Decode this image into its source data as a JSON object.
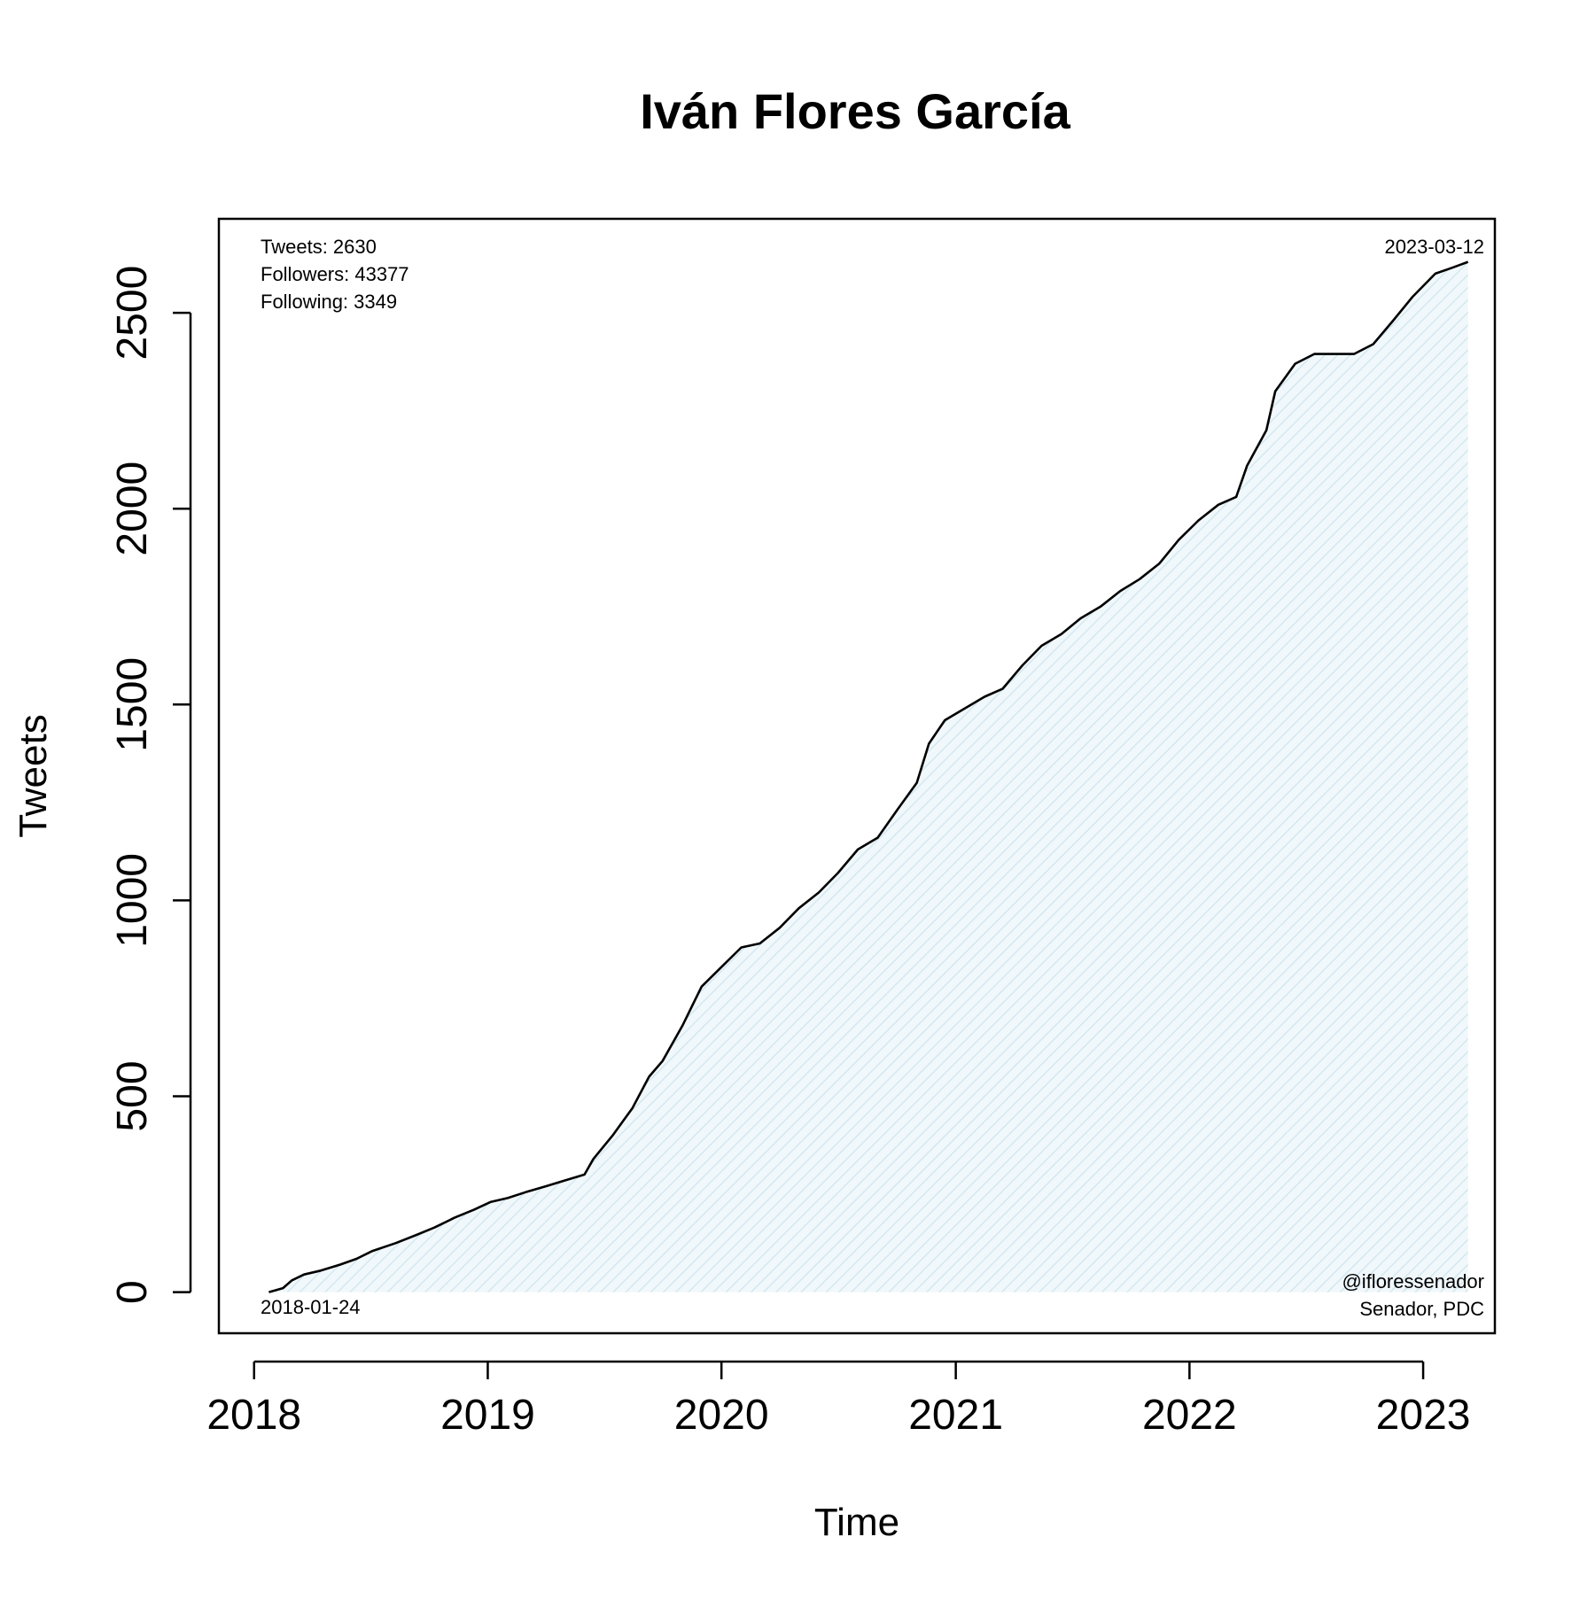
{
  "chart_data": {
    "type": "area",
    "title": "Iván Flores García",
    "xlabel": "Time",
    "ylabel": "Tweets",
    "x_ticks": [
      "2018",
      "2019",
      "2020",
      "2021",
      "2022",
      "2023"
    ],
    "y_ticks": [
      "0",
      "500",
      "1000",
      "1500",
      "2000",
      "2500"
    ],
    "ylim": [
      -105,
      2740
    ],
    "xlim": [
      "2017-11-07",
      "2023-04-23"
    ],
    "grid": false,
    "fill_color": "#e4f2f7",
    "line_color": "#000000",
    "annotations": {
      "stats": [
        "Tweets: 2630",
        "Followers: 43377",
        "Following: 3349"
      ],
      "start_date": "2018-01-24",
      "end_date": "2023-03-12",
      "handle": "@ifloressenador",
      "role": "Senador, PDC"
    },
    "series": [
      {
        "points": [
          [
            "2018-01-24",
            0
          ],
          [
            "2018-02-15",
            10
          ],
          [
            "2018-03-01",
            30
          ],
          [
            "2018-03-20",
            45
          ],
          [
            "2018-04-15",
            55
          ],
          [
            "2018-05-15",
            70
          ],
          [
            "2018-06-10",
            85
          ],
          [
            "2018-07-05",
            105
          ],
          [
            "2018-08-10",
            125
          ],
          [
            "2018-09-10",
            145
          ],
          [
            "2018-10-10",
            165
          ],
          [
            "2018-11-10",
            190
          ],
          [
            "2018-12-10",
            210
          ],
          [
            "2019-01-05",
            230
          ],
          [
            "2019-02-01",
            240
          ],
          [
            "2019-03-01",
            255
          ],
          [
            "2019-04-01",
            270
          ],
          [
            "2019-05-01",
            285
          ],
          [
            "2019-06-01",
            300
          ],
          [
            "2019-06-15",
            340
          ],
          [
            "2019-07-15",
            400
          ],
          [
            "2019-08-15",
            470
          ],
          [
            "2019-09-10",
            550
          ],
          [
            "2019-10-01",
            590
          ],
          [
            "2019-11-01",
            680
          ],
          [
            "2019-12-01",
            780
          ],
          [
            "2020-01-01",
            830
          ],
          [
            "2020-02-01",
            880
          ],
          [
            "2020-03-01",
            890
          ],
          [
            "2020-04-01",
            930
          ],
          [
            "2020-05-01",
            980
          ],
          [
            "2020-06-01",
            1020
          ],
          [
            "2020-07-01",
            1070
          ],
          [
            "2020-08-01",
            1130
          ],
          [
            "2020-09-01",
            1160
          ],
          [
            "2020-10-01",
            1230
          ],
          [
            "2020-11-01",
            1300
          ],
          [
            "2020-11-20",
            1400
          ],
          [
            "2020-12-15",
            1460
          ],
          [
            "2021-01-15",
            1490
          ],
          [
            "2021-02-15",
            1520
          ],
          [
            "2021-03-15",
            1540
          ],
          [
            "2021-04-15",
            1600
          ],
          [
            "2021-05-15",
            1650
          ],
          [
            "2021-06-15",
            1680
          ],
          [
            "2021-07-15",
            1720
          ],
          [
            "2021-08-15",
            1750
          ],
          [
            "2021-09-15",
            1790
          ],
          [
            "2021-10-15",
            1820
          ],
          [
            "2021-11-15",
            1860
          ],
          [
            "2021-12-15",
            1920
          ],
          [
            "2022-01-15",
            1970
          ],
          [
            "2022-02-15",
            2010
          ],
          [
            "2022-03-15",
            2030
          ],
          [
            "2022-04-01",
            2110
          ],
          [
            "2022-05-01",
            2200
          ],
          [
            "2022-05-15",
            2300
          ],
          [
            "2022-06-15",
            2370
          ],
          [
            "2022-07-15",
            2395
          ],
          [
            "2022-09-15",
            2395
          ],
          [
            "2022-10-15",
            2420
          ],
          [
            "2022-11-15",
            2480
          ],
          [
            "2022-12-15",
            2540
          ],
          [
            "2023-01-20",
            2600
          ],
          [
            "2023-02-15",
            2615
          ],
          [
            "2023-03-12",
            2630
          ]
        ]
      }
    ]
  }
}
